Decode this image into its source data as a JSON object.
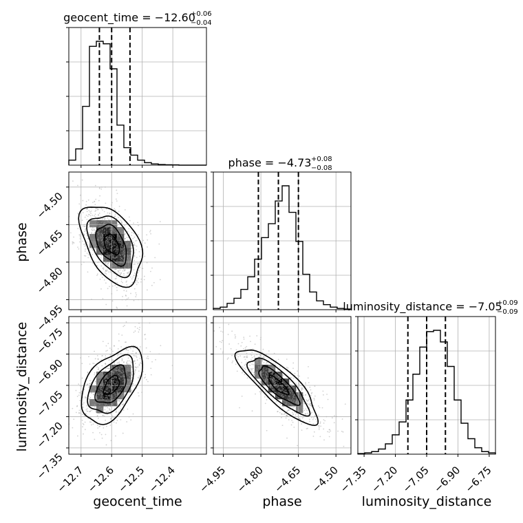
{
  "colors": {
    "line": "#000000",
    "grid": "#b0b0b0",
    "point": "#9a9a9a",
    "background": "#ffffff"
  },
  "chart_data": {
    "type": "corner",
    "parameters": [
      {
        "key": "geocent_time",
        "label": "geocent_time",
        "range": [
          -12.74,
          -12.29
        ],
        "ticks": [
          -12.7,
          -12.6,
          -12.5,
          -12.4
        ],
        "tick_labels": [
          "−12.7",
          "−12.6",
          "−12.5",
          "−12.4"
        ],
        "median": -12.6,
        "q_low": -12.64,
        "q_high": -12.54,
        "title_main": "geocent_time = −12.60",
        "title_sup": "+0.06",
        "title_sub": "−0.04",
        "hist_edges": [
          -12.74,
          -12.7,
          -12.6,
          -12.5,
          -12.4,
          -12.29
        ],
        "hist_counts": [
          4,
          13,
          47,
          95,
          99,
          97,
          77,
          32,
          14,
          8,
          4,
          2,
          1,
          0.5,
          0.3,
          0.2,
          0,
          0,
          0,
          0
        ]
      },
      {
        "key": "phase",
        "label": "phase",
        "range": [
          -4.99,
          -4.44
        ],
        "ticks": [
          -4.95,
          -4.8,
          -4.65,
          -4.5
        ],
        "tick_labels": [
          "−4.95",
          "−4.80",
          "−4.65",
          "−4.50"
        ],
        "median": -4.73,
        "q_low": -4.81,
        "q_high": -4.65,
        "title_main": "phase = −4.73",
        "title_sup": "+0.08",
        "title_sub": "−0.08",
        "hist_counts": [
          1,
          2,
          5,
          9,
          16,
          26,
          40,
          57,
          68,
          86,
          98,
          77,
          54,
          28,
          14,
          7,
          4,
          2,
          1,
          0.5
        ]
      },
      {
        "key": "luminosity_distance",
        "label": "luminosity_distance",
        "range": [
          -7.38,
          -6.72
        ],
        "ticks": [
          -7.35,
          -7.2,
          -7.05,
          -6.9,
          -6.75
        ],
        "tick_labels": [
          "−7.35",
          "−7.20",
          "−7.05",
          "−6.90",
          "−6.75"
        ],
        "median": -7.05,
        "q_low": -7.14,
        "q_high": -6.96,
        "title_main": "luminosity_distance = −7.05",
        "title_sup": "+0.09",
        "title_sub": "−0.09",
        "hist_counts": [
          0.5,
          1,
          2,
          4,
          8,
          15,
          25,
          42,
          62,
          83,
          95,
          96,
          87,
          68,
          42,
          24,
          12,
          5,
          2,
          1
        ]
      }
    ],
    "pairs": [
      {
        "x": "geocent_time",
        "y": "phase",
        "rho": -0.45
      },
      {
        "x": "geocent_time",
        "y": "luminosity_distance",
        "rho": 0.5
      },
      {
        "x": "phase",
        "y": "luminosity_distance",
        "rho": -0.82
      }
    ],
    "grid": true,
    "quantiles": [
      0.16,
      0.5,
      0.84
    ],
    "contour_levels": 4
  }
}
